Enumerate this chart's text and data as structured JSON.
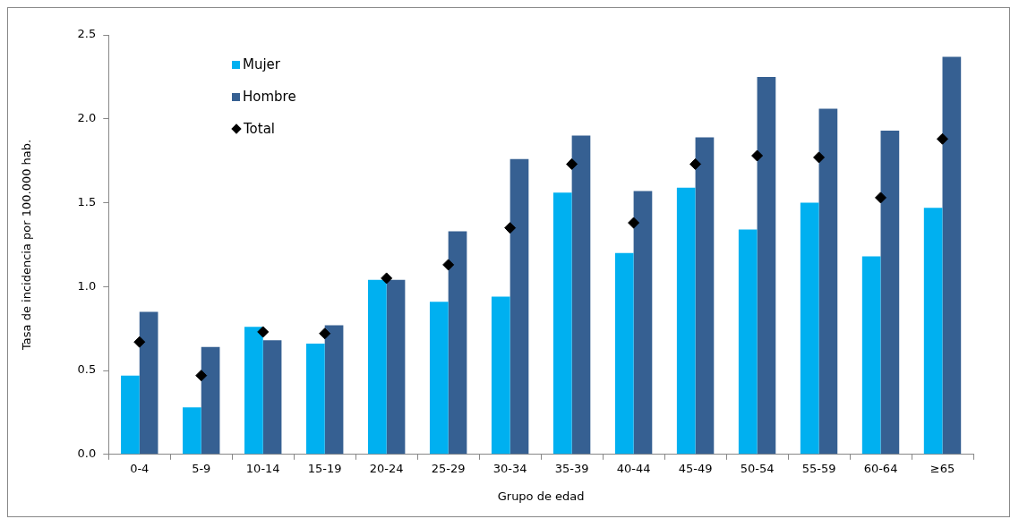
{
  "chart_data": {
    "type": "bar",
    "xlabel": "Grupo de edad",
    "ylabel": "Tasa de incidencia por 100.000 hab.",
    "categories": [
      "0-4",
      "5-9",
      "10-14",
      "15-19",
      "20-24",
      "25-29",
      "30-34",
      "35-39",
      "40-44",
      "45-49",
      "50-54",
      "55-59",
      "60-64",
      "≥65"
    ],
    "series": [
      {
        "name": "Mujer",
        "color": "#00b0f0",
        "values": [
          0.47,
          0.28,
          0.76,
          0.66,
          1.04,
          0.91,
          0.94,
          1.56,
          1.2,
          1.59,
          1.34,
          1.5,
          1.18,
          1.47
        ]
      },
      {
        "name": "Hombre",
        "color": "#366092",
        "values": [
          0.85,
          0.64,
          0.68,
          0.77,
          1.04,
          1.33,
          1.76,
          1.9,
          1.57,
          1.89,
          2.25,
          2.06,
          1.93,
          2.37
        ]
      },
      {
        "name": "Total",
        "type": "scatter",
        "color": "#000000",
        "marker": "diamond",
        "values": [
          0.67,
          0.47,
          0.73,
          0.72,
          1.05,
          1.13,
          1.35,
          1.73,
          1.38,
          1.73,
          1.78,
          1.77,
          1.53,
          1.88
        ]
      }
    ],
    "ylim": [
      0,
      2.5
    ],
    "yticks": [
      {
        "value": 0,
        "label": "0.0"
      },
      {
        "value": 0.5,
        "label": "0.5"
      },
      {
        "value": 1,
        "label": "1.0"
      },
      {
        "value": 1.5,
        "label": "1.5"
      },
      {
        "value": 2,
        "label": "2.0"
      },
      {
        "value": 2.5,
        "label": "2.5"
      }
    ],
    "grid": false,
    "legend": "top left"
  }
}
